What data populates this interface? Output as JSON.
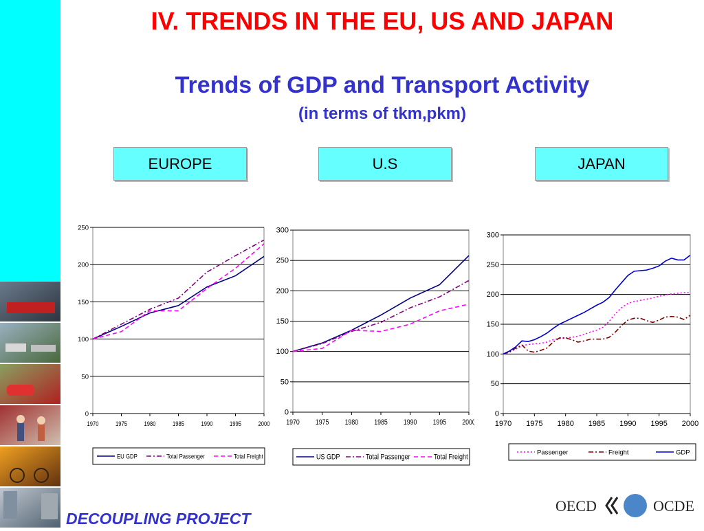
{
  "title": "IV. TRENDS IN THE EU, US AND JAPAN",
  "subtitle": "Trends of GDP and Transport Activity",
  "subtitle2": "(in terms of tkm,pkm)",
  "regions": [
    "EUROPE",
    "U.S",
    "JAPAN"
  ],
  "footer": "DECOUPLING PROJECT",
  "logo": {
    "left": "OECD",
    "right": "OCDE"
  },
  "colors": {
    "sidebar": "#00ffff",
    "title": "#ff0000",
    "subtitle": "#3333cc",
    "region_box": "#66ffff"
  },
  "chart_data": [
    {
      "type": "line",
      "x": [
        1970,
        1975,
        1980,
        1985,
        1990,
        1995,
        2000
      ],
      "xticks": [
        "1970",
        "1975",
        "1980",
        "1985",
        "1990",
        "1995",
        "2000"
      ],
      "ylim": [
        0,
        250
      ],
      "yticks": [
        0,
        50,
        100,
        150,
        200,
        250
      ],
      "grid": true,
      "legend": "bottom",
      "series": [
        {
          "name": "EU GDP",
          "color": "#000080",
          "style": "solid",
          "values": [
            100,
            117,
            135,
            145,
            170,
            185,
            211
          ]
        },
        {
          "name": "Total Passenger",
          "color": "#800080",
          "style": "dashdot",
          "values": [
            100,
            120,
            140,
            155,
            190,
            212,
            233
          ]
        },
        {
          "name": "Total Freight",
          "color": "#ff00ff",
          "style": "dashed",
          "values": [
            100,
            110,
            138,
            138,
            168,
            195,
            228
          ]
        }
      ]
    },
    {
      "type": "line",
      "x": [
        1970,
        1975,
        1980,
        1985,
        1990,
        1995,
        2000
      ],
      "xticks": [
        "1970",
        "1975",
        "1980",
        "1985",
        "1990",
        "1995",
        "2000"
      ],
      "ylim": [
        0,
        300
      ],
      "yticks": [
        0,
        50,
        100,
        150,
        200,
        250,
        300
      ],
      "grid": true,
      "legend": "bottom",
      "series": [
        {
          "name": "US GDP",
          "color": "#000080",
          "style": "solid",
          "values": [
            100,
            114,
            135,
            160,
            188,
            210,
            258
          ]
        },
        {
          "name": "Total Passenger",
          "color": "#800080",
          "style": "dashdot",
          "values": [
            100,
            113,
            133,
            148,
            172,
            190,
            217
          ]
        },
        {
          "name": "Total Freight",
          "color": "#ff00ff",
          "style": "dashed",
          "values": [
            100,
            105,
            135,
            133,
            145,
            167,
            178
          ]
        }
      ]
    },
    {
      "type": "line",
      "x": [
        1970,
        1971,
        1972,
        1973,
        1974,
        1975,
        1976,
        1977,
        1978,
        1979,
        1980,
        1981,
        1982,
        1983,
        1984,
        1985,
        1986,
        1987,
        1988,
        1989,
        1990,
        1991,
        1992,
        1993,
        1994,
        1995,
        1996,
        1997,
        1998,
        1999,
        2000
      ],
      "xticks": [
        "1970",
        "1975",
        "1980",
        "1985",
        "1990",
        "1995",
        "2000"
      ],
      "xtick_values": [
        1970,
        1975,
        1980,
        1985,
        1990,
        1995,
        2000
      ],
      "ylim": [
        0,
        300
      ],
      "yticks": [
        0,
        50,
        100,
        150,
        200,
        250,
        300
      ],
      "grid": true,
      "legend": "bottom",
      "series": [
        {
          "name": "Passenger",
          "color": "#ff00ff",
          "style": "dotted",
          "values": [
            100,
            104,
            108,
            114,
            116,
            117,
            118,
            120,
            124,
            126,
            127,
            128,
            130,
            133,
            137,
            140,
            145,
            155,
            168,
            178,
            185,
            188,
            190,
            192,
            194,
            197,
            199,
            201,
            202,
            203,
            203
          ]
        },
        {
          "name": "Freight",
          "color": "#800000",
          "style": "dashdot",
          "values": [
            100,
            103,
            110,
            115,
            105,
            103,
            106,
            110,
            120,
            127,
            127,
            124,
            120,
            122,
            125,
            125,
            125,
            128,
            137,
            148,
            157,
            160,
            160,
            156,
            153,
            157,
            162,
            163,
            162,
            158,
            165
          ]
        },
        {
          "name": "GDP",
          "color": "#0000cc",
          "style": "solid",
          "values": [
            100,
            105,
            112,
            122,
            121,
            124,
            129,
            135,
            143,
            150,
            155,
            160,
            165,
            170,
            176,
            182,
            187,
            195,
            208,
            220,
            232,
            239,
            240,
            241,
            244,
            248,
            256,
            261,
            258,
            258,
            266
          ]
        }
      ]
    }
  ]
}
